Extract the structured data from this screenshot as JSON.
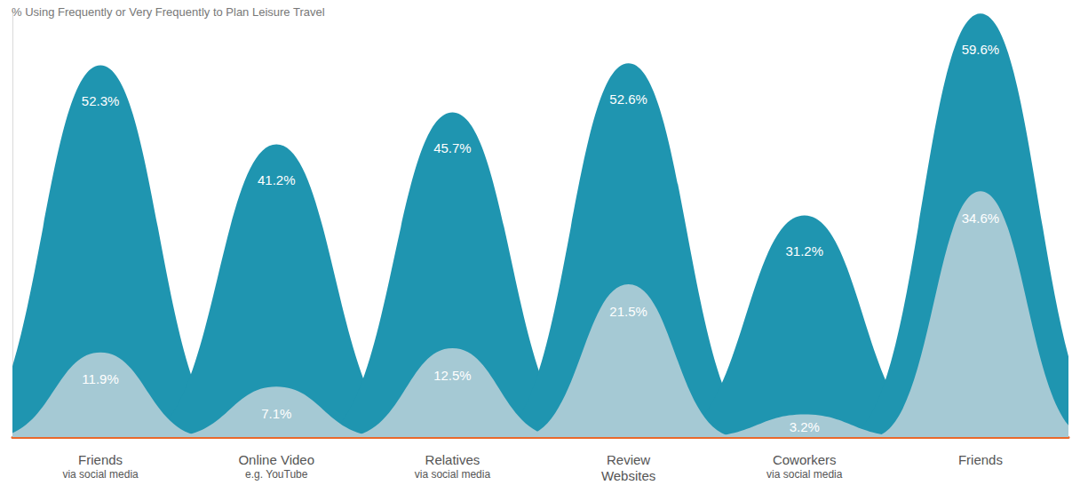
{
  "chart_data": {
    "type": "bell_area",
    "title": "% Using Frequently or Very Frequently to Plan Leisure Travel",
    "categories": [
      "Friends\nvia social media",
      "Online Video\ne.g. YouTube",
      "Relatives\nvia social media",
      "Review\nWebsites",
      "Coworkers\nvia social media",
      "Friends"
    ],
    "series": [
      {
        "color": "#1f95b0",
        "values": [
          52.3,
          41.2,
          45.7,
          52.6,
          31.2,
          59.6
        ],
        "value_labels": [
          "52.3%",
          "41.2%",
          "45.7%",
          "52.6%",
          "31.2%",
          "59.6%"
        ]
      },
      {
        "color": "#a5c9d4",
        "values": [
          11.9,
          7.1,
          12.5,
          21.5,
          3.2,
          34.6
        ],
        "value_labels": [
          "11.9%",
          "7.1%",
          "12.5%",
          "21.5%",
          "3.2%",
          "34.6%"
        ]
      }
    ],
    "ylim": [
      0,
      60
    ],
    "grid": false,
    "data_labels": true,
    "tick_labels": "x"
  }
}
